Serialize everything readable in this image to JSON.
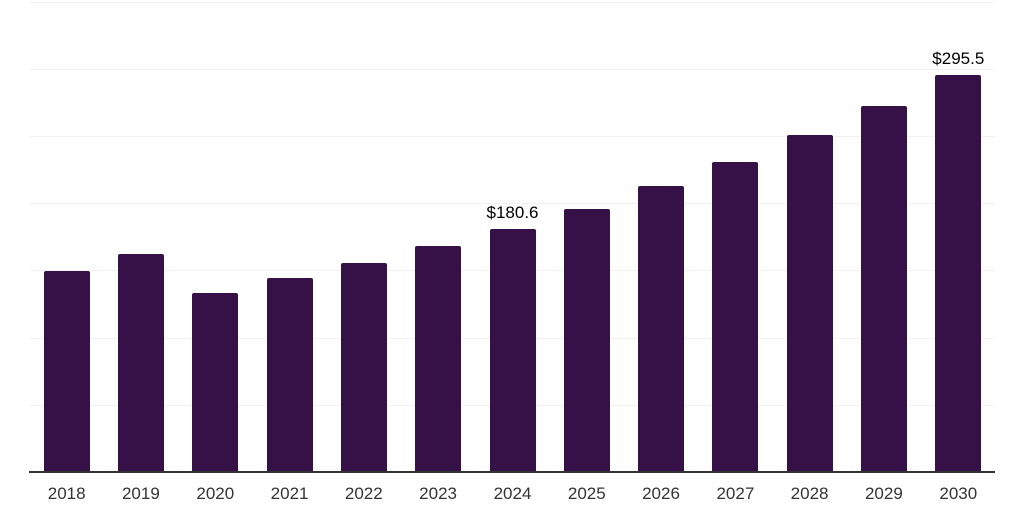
{
  "chart_data": {
    "type": "bar",
    "title": "",
    "xlabel": "",
    "ylabel": "",
    "categories": [
      "2018",
      "2019",
      "2020",
      "2021",
      "2022",
      "2023",
      "2024",
      "2025",
      "2026",
      "2027",
      "2028",
      "2029",
      "2030"
    ],
    "values": [
      149.6,
      161.9,
      133.5,
      144.6,
      155.7,
      168.1,
      180.6,
      196.0,
      212.8,
      231.0,
      250.7,
      272.2,
      295.5
    ],
    "data_labels": [
      {
        "index": 6,
        "text": "$180.6"
      },
      {
        "index": 12,
        "text": "$295.5"
      }
    ],
    "ylim": [
      0,
      350
    ],
    "grid_step": 50,
    "grid_visible": true,
    "legend_position": "none",
    "colors": {
      "bar": "#351148",
      "gridline": "#f1f1f1",
      "axis_line": "#333333",
      "tick_label": "#333333",
      "data_label": "#000000",
      "background": "#ffffff"
    }
  }
}
